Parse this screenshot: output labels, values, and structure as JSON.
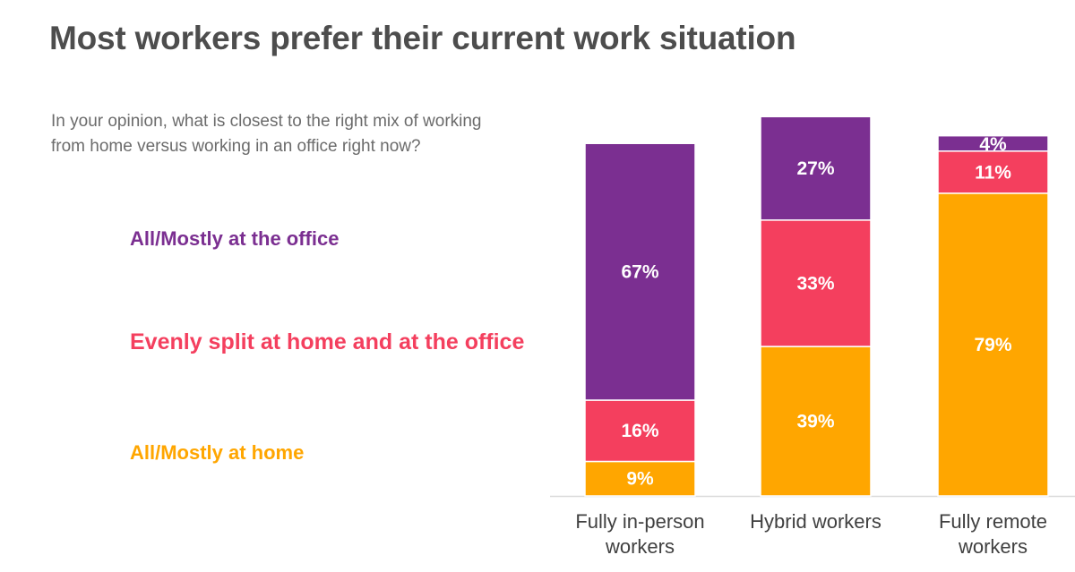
{
  "title": "Most workers prefer their current work situation",
  "question": "In your opinion, what is closest to the right mix of working from home versus working in an office right now?",
  "colors": {
    "office": "#7b2f91",
    "split": "#f43f5e",
    "home": "#ffa600",
    "title": "#4d4d4d",
    "axis": "#d9d9d9"
  },
  "chart_data": {
    "type": "bar",
    "stacked": true,
    "title": "Most workers prefer their current work situation",
    "categories": [
      [
        "Fully in-person",
        "workers"
      ],
      [
        "Hybrid workers"
      ],
      [
        "Fully remote",
        "workers"
      ]
    ],
    "series": [
      {
        "name": "All/Mostly at home",
        "key": "home",
        "values": [
          9,
          39,
          79
        ],
        "labels": [
          "9%",
          "39%",
          "79%"
        ]
      },
      {
        "name": "Evenly split at home and at the office",
        "key": "split",
        "values": [
          16,
          33,
          11
        ],
        "labels": [
          "16%",
          "33%",
          "11%"
        ]
      },
      {
        "name": "All/Mostly at the office",
        "key": "office",
        "values": [
          67,
          27,
          4
        ],
        "labels": [
          "67%",
          "27%",
          "4%"
        ]
      }
    ],
    "ylim": [
      0,
      100
    ],
    "legend": "left"
  }
}
